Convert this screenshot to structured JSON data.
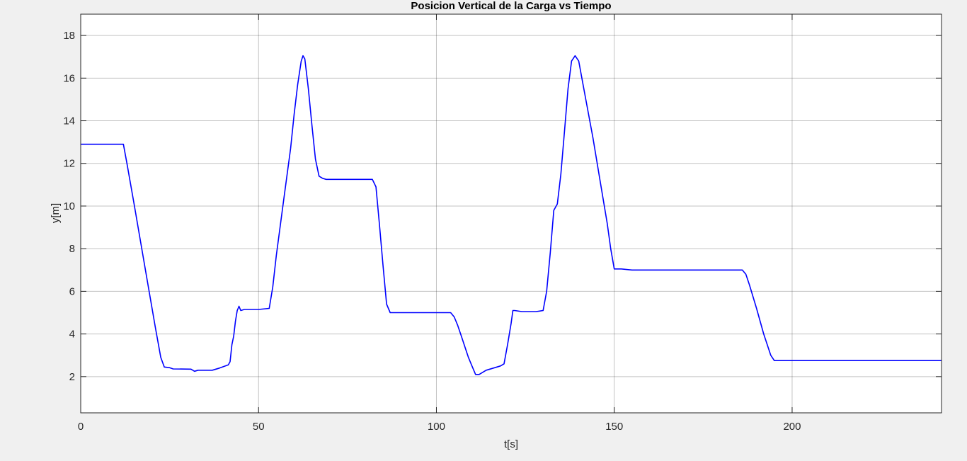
{
  "chart_data": {
    "type": "line",
    "title": "Posicion Vertical de la Carga vs Tiempo",
    "xlabel": "t[s]",
    "ylabel": "y[m]",
    "xlim": [
      0,
      242
    ],
    "ylim": [
      0.3,
      19
    ],
    "xticks": [
      0,
      50,
      100,
      150,
      200
    ],
    "yticks": [
      2,
      4,
      6,
      8,
      10,
      12,
      14,
      16,
      18
    ],
    "grid": true,
    "series": [
      {
        "color": "#0000ff",
        "x": [
          0,
          12,
          13,
          15,
          18,
          21,
          22.5,
          23.5,
          25,
          26,
          31,
          32,
          33,
          37,
          39,
          41.5,
          42,
          42.5,
          43,
          43.5,
          44,
          44.5,
          45,
          46,
          50,
          53,
          54,
          55,
          57,
          59,
          60,
          61,
          62,
          62.5,
          63,
          64,
          65,
          66,
          67,
          68,
          69,
          72,
          78,
          82,
          83,
          84,
          85,
          86,
          87,
          88,
          100,
          104,
          105,
          106,
          107,
          108,
          109,
          110,
          111,
          112,
          113,
          114,
          115,
          118,
          119,
          120,
          121,
          121.5,
          122,
          124,
          128,
          130,
          131,
          132,
          133,
          134,
          135,
          136,
          137,
          138,
          139,
          140,
          141,
          142,
          144,
          146,
          148,
          149,
          150,
          152,
          155,
          170,
          186,
          187,
          188,
          190,
          192,
          194,
          195,
          196,
          200,
          210,
          242
        ],
        "y": [
          12.9,
          12.9,
          12.0,
          10.1,
          7.2,
          4.3,
          2.9,
          2.45,
          2.42,
          2.36,
          2.35,
          2.25,
          2.3,
          2.3,
          2.4,
          2.55,
          2.7,
          3.5,
          3.9,
          4.6,
          5.1,
          5.3,
          5.1,
          5.15,
          5.15,
          5.2,
          6.2,
          7.7,
          10.2,
          12.7,
          14.3,
          15.7,
          16.8,
          17.05,
          16.9,
          15.5,
          13.8,
          12.2,
          11.4,
          11.3,
          11.25,
          11.25,
          11.25,
          11.25,
          10.9,
          9.1,
          7.2,
          5.4,
          5.0,
          5.0,
          5.0,
          5.0,
          4.8,
          4.4,
          3.9,
          3.4,
          2.9,
          2.5,
          2.1,
          2.1,
          2.2,
          2.3,
          2.35,
          2.5,
          2.6,
          3.5,
          4.5,
          5.1,
          5.1,
          5.05,
          5.05,
          5.1,
          6.0,
          7.8,
          9.8,
          10.1,
          11.5,
          13.5,
          15.5,
          16.8,
          17.05,
          16.8,
          15.9,
          15.0,
          13.2,
          11.2,
          9.2,
          8.0,
          7.05,
          7.05,
          7.0,
          7.0,
          7.0,
          6.8,
          6.3,
          5.2,
          4.0,
          3.0,
          2.75,
          2.75,
          2.75,
          2.75,
          2.75
        ]
      }
    ]
  }
}
